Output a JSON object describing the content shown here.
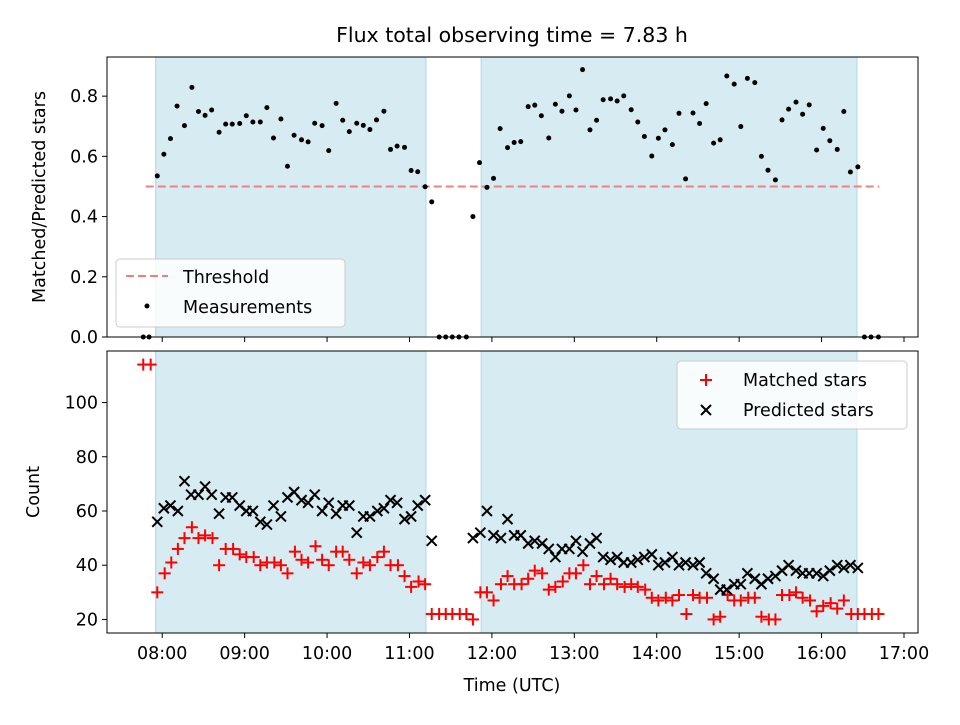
{
  "chart_data": {
    "type": "scatter",
    "title": "Flux total observing time = 7.83 h",
    "colors": {
      "measurement": "#000000",
      "threshold": "#f08080",
      "matched": "#ff0000",
      "predicted": "#000000",
      "observing_band": "#add8e6"
    },
    "xlabel": "Time (UTC)",
    "x_unit": "hours UTC (decimal)",
    "x_range": [
      7.33,
      17.17
    ],
    "x_ticks": [
      {
        "value": 8,
        "label": "08:00"
      },
      {
        "value": 9,
        "label": "09:00"
      },
      {
        "value": 10,
        "label": "10:00"
      },
      {
        "value": 11,
        "label": "11:00"
      },
      {
        "value": 12,
        "label": "12:00"
      },
      {
        "value": 13,
        "label": "13:00"
      },
      {
        "value": 14,
        "label": "14:00"
      },
      {
        "value": 15,
        "label": "15:00"
      },
      {
        "value": 16,
        "label": "16:00"
      },
      {
        "value": 17,
        "label": "17:00"
      }
    ],
    "observing_windows": [
      [
        7.92,
        11.2
      ],
      [
        11.87,
        16.43
      ]
    ],
    "top_panel": {
      "ylabel": "Matched/Predicted stars",
      "ylim": [
        0,
        0.93
      ],
      "y_ticks": [
        0,
        0.2,
        0.4,
        0.6,
        0.8
      ],
      "y_tick_labels": [
        "0.0",
        "0.2",
        "0.4",
        "0.6",
        "0.8"
      ],
      "threshold": {
        "value": 0.5,
        "x_range": [
          7.8,
          16.7
        ],
        "label": "Threshold"
      },
      "legend": {
        "location": "lower left",
        "entries": [
          "Threshold",
          "Measurements"
        ]
      },
      "measurements": {
        "name": "Measurements",
        "x": [
          7.77,
          7.84,
          7.94,
          8.02,
          8.1,
          8.18,
          8.27,
          8.36,
          8.44,
          8.52,
          8.6,
          8.69,
          8.77,
          8.85,
          8.94,
          9.02,
          9.1,
          9.19,
          9.27,
          9.35,
          9.44,
          9.52,
          9.6,
          9.69,
          9.77,
          9.85,
          9.94,
          10.02,
          10.11,
          10.19,
          10.27,
          10.36,
          10.44,
          10.52,
          10.6,
          10.69,
          10.77,
          10.85,
          10.94,
          11.02,
          11.1,
          11.19,
          11.27,
          11.36,
          11.44,
          11.52,
          11.6,
          11.69,
          11.77,
          11.85,
          11.94,
          12.02,
          12.1,
          12.19,
          12.27,
          12.35,
          12.44,
          12.52,
          12.6,
          12.69,
          12.77,
          12.85,
          12.94,
          13.02,
          13.1,
          13.19,
          13.27,
          13.35,
          13.44,
          13.52,
          13.6,
          13.69,
          13.77,
          13.85,
          13.94,
          14.02,
          14.1,
          14.19,
          14.27,
          14.35,
          14.44,
          14.52,
          14.6,
          14.69,
          14.77,
          14.85,
          14.94,
          15.02,
          15.1,
          15.19,
          15.27,
          15.35,
          15.44,
          15.52,
          15.6,
          15.69,
          15.77,
          15.85,
          15.94,
          16.02,
          16.1,
          16.19,
          16.27,
          16.35,
          16.44,
          16.52,
          16.6,
          16.69
        ],
        "y": [
          0.0,
          0.0,
          0.535,
          0.607,
          0.659,
          0.767,
          0.702,
          0.829,
          0.749,
          0.736,
          0.754,
          0.68,
          0.707,
          0.707,
          0.709,
          0.735,
          0.714,
          0.714,
          0.762,
          0.661,
          0.724,
          0.567,
          0.67,
          0.655,
          0.648,
          0.71,
          0.702,
          0.619,
          0.776,
          0.72,
          0.682,
          0.71,
          0.703,
          0.689,
          0.721,
          0.75,
          0.623,
          0.634,
          0.63,
          0.553,
          0.549,
          0.499,
          0.449,
          0.0,
          0.0,
          0.0,
          0.0,
          0.0,
          0.4,
          0.579,
          0.497,
          0.527,
          0.692,
          0.629,
          0.646,
          0.649,
          0.765,
          0.77,
          0.735,
          0.661,
          0.773,
          0.75,
          0.801,
          0.754,
          0.888,
          0.688,
          0.72,
          0.788,
          0.791,
          0.784,
          0.801,
          0.755,
          0.714,
          0.666,
          0.601,
          0.66,
          0.688,
          0.639,
          0.743,
          0.525,
          0.744,
          0.709,
          0.775,
          0.644,
          0.655,
          0.867,
          0.84,
          0.699,
          0.859,
          0.845,
          0.6,
          0.554,
          0.522,
          0.721,
          0.757,
          0.78,
          0.74,
          0.771,
          0.621,
          0.693,
          0.652,
          0.623,
          0.749,
          0.548,
          0.565,
          0.0,
          0.0,
          0.0
        ]
      }
    },
    "bottom_panel": {
      "ylabel": "Count",
      "ylim": [
        15,
        119
      ],
      "y_ticks": [
        20,
        40,
        60,
        80,
        100
      ],
      "y_tick_labels": [
        "20",
        "40",
        "60",
        "80",
        "100"
      ],
      "legend": {
        "location": "upper right",
        "entries": [
          "Matched stars",
          "Predicted stars"
        ]
      },
      "series": [
        {
          "name": "Matched stars",
          "marker": "+",
          "x": [
            7.77,
            7.86,
            7.94,
            8.03,
            8.11,
            8.19,
            8.27,
            8.36,
            8.44,
            8.52,
            8.61,
            8.69,
            8.77,
            8.86,
            8.94,
            9.02,
            9.11,
            9.19,
            9.27,
            9.36,
            9.44,
            9.52,
            9.61,
            9.69,
            9.77,
            9.86,
            9.94,
            10.02,
            10.11,
            10.19,
            10.27,
            10.36,
            10.44,
            10.52,
            10.61,
            10.69,
            10.77,
            10.86,
            10.94,
            11.02,
            11.11,
            11.19,
            11.27,
            11.36,
            11.44,
            11.52,
            11.61,
            11.69,
            11.77,
            11.86,
            11.94,
            12.02,
            12.11,
            12.19,
            12.27,
            12.36,
            12.44,
            12.52,
            12.61,
            12.69,
            12.77,
            12.86,
            12.94,
            13.02,
            13.11,
            13.19,
            13.27,
            13.36,
            13.44,
            13.52,
            13.61,
            13.69,
            13.77,
            13.86,
            13.94,
            14.02,
            14.11,
            14.19,
            14.27,
            14.36,
            14.44,
            14.52,
            14.61,
            14.69,
            14.77,
            14.86,
            14.94,
            15.02,
            15.11,
            15.19,
            15.27,
            15.36,
            15.44,
            15.52,
            15.61,
            15.69,
            15.77,
            15.86,
            15.94,
            16.02,
            16.11,
            16.19,
            16.27,
            16.36,
            16.44,
            16.52,
            16.61,
            16.69
          ],
          "y": [
            114,
            114,
            30,
            37,
            41,
            46,
            50,
            54,
            50,
            51,
            50,
            40,
            46,
            46,
            44,
            43,
            43,
            40,
            41,
            41,
            40,
            37,
            45,
            42,
            41,
            47,
            42,
            40,
            45,
            45,
            42,
            37,
            41,
            40,
            43,
            45,
            40,
            40,
            36,
            32,
            34,
            33,
            22,
            22,
            22,
            22,
            22,
            22,
            20,
            30,
            30,
            27,
            33,
            36,
            33,
            33,
            35,
            38,
            37,
            31,
            32,
            34,
            37,
            37,
            40,
            33,
            36,
            33,
            35,
            33,
            32,
            33,
            32,
            31,
            28,
            27,
            28,
            27,
            29,
            22,
            29,
            28,
            28,
            20,
            21,
            29,
            27,
            27,
            28,
            28,
            21,
            20,
            20,
            29,
            29,
            30,
            28,
            27,
            23,
            25,
            26,
            24,
            27,
            22,
            22,
            22,
            22,
            22
          ]
        },
        {
          "name": "Predicted stars",
          "marker": "x",
          "x": [
            7.94,
            8.02,
            8.1,
            8.19,
            8.27,
            8.35,
            8.44,
            8.52,
            8.6,
            8.69,
            8.77,
            8.85,
            8.94,
            9.02,
            9.1,
            9.19,
            9.27,
            9.35,
            9.44,
            9.52,
            9.6,
            9.69,
            9.77,
            9.85,
            9.94,
            10.02,
            10.11,
            10.19,
            10.27,
            10.36,
            10.44,
            10.52,
            10.61,
            10.69,
            10.77,
            10.85,
            10.94,
            11.02,
            11.1,
            11.19,
            11.27,
            11.77,
            11.86,
            11.94,
            12.02,
            12.11,
            12.19,
            12.27,
            12.35,
            12.44,
            12.52,
            12.61,
            12.69,
            12.77,
            12.85,
            12.94,
            13.02,
            13.1,
            13.19,
            13.27,
            13.35,
            13.44,
            13.52,
            13.6,
            13.69,
            13.77,
            13.85,
            13.94,
            14.02,
            14.1,
            14.19,
            14.27,
            14.35,
            14.44,
            14.52,
            14.6,
            14.69,
            14.77,
            14.85,
            14.94,
            15.02,
            15.1,
            15.19,
            15.27,
            15.35,
            15.44,
            15.52,
            15.6,
            15.69,
            15.77,
            15.85,
            15.94,
            16.02,
            16.1,
            16.19,
            16.27,
            16.35,
            16.44
          ],
          "y": [
            56,
            61,
            62,
            60,
            71,
            66,
            66,
            69,
            66,
            59,
            65,
            65,
            62,
            60,
            60,
            56,
            55,
            62,
            58,
            65,
            67,
            64,
            63,
            66,
            60,
            63,
            59,
            62,
            62,
            52,
            58,
            58,
            60,
            61,
            64,
            63,
            57,
            58,
            62,
            64,
            49,
            50,
            52,
            60,
            51,
            50,
            57,
            51,
            51,
            48,
            49,
            48,
            46,
            43,
            46,
            46,
            49,
            45,
            48,
            50,
            43,
            42,
            43,
            41,
            41,
            42,
            43,
            44,
            40,
            41,
            43,
            40,
            41,
            40,
            41,
            37,
            35,
            31,
            31,
            33,
            33,
            37,
            35,
            33,
            35,
            36,
            38,
            40,
            38,
            37,
            37,
            37,
            36,
            38,
            40,
            39,
            40,
            39
          ]
        }
      ]
    }
  }
}
